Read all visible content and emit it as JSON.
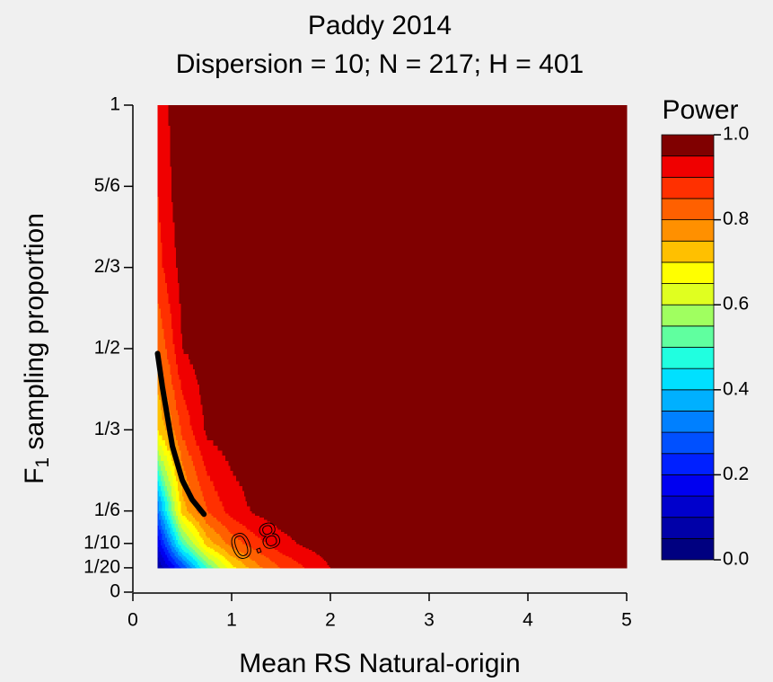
{
  "chart_data": {
    "type": "filled_contour",
    "title": "Paddy 2014",
    "subtitle": "Dispersion = 10; N = 217; H = 401",
    "x_label": "Mean RS Natural-origin",
    "y_label_parts": [
      "F",
      "1",
      " sampling proportion"
    ],
    "colorbar_title": "Power",
    "xlim": [
      0,
      5
    ],
    "ylim": [
      0,
      1
    ],
    "xticks": [
      0,
      1,
      2,
      3,
      4,
      5
    ],
    "yticks": [
      0,
      {
        "value": 0.05,
        "label": "1/20"
      },
      {
        "value": 0.1,
        "label": "1/10"
      },
      {
        "value": 0.1667,
        "label": "1/6"
      },
      {
        "value": 0.3333,
        "label": "1/3"
      },
      {
        "value": 0.5,
        "label": "1/2"
      },
      {
        "value": 0.6667,
        "label": "2/3"
      },
      {
        "value": 0.8333,
        "label": "5/6"
      },
      1
    ],
    "x": [
      0.25,
      0.5,
      0.75,
      1,
      1.25,
      1.5,
      1.75,
      2,
      2.5,
      3,
      3.5,
      4,
      4.5,
      5
    ],
    "y": [
      0.05,
      0.1,
      0.1667,
      0.3333,
      0.5,
      0.6667,
      0.8333,
      1
    ],
    "z": [
      [
        0.05,
        0.25,
        0.5,
        0.68,
        0.78,
        0.85,
        0.9,
        0.95,
        0.98,
        0.99,
        0.99,
        0.99,
        0.99,
        0.99
      ],
      [
        0.15,
        0.5,
        0.72,
        0.82,
        0.88,
        0.93,
        0.96,
        0.98,
        0.99,
        0.99,
        0.99,
        0.99,
        0.99,
        0.99
      ],
      [
        0.3,
        0.72,
        0.85,
        0.92,
        0.96,
        0.98,
        0.99,
        0.99,
        0.99,
        0.99,
        0.99,
        0.99,
        0.99,
        0.99
      ],
      [
        0.7,
        0.86,
        0.96,
        0.98,
        0.99,
        0.99,
        0.99,
        0.99,
        0.99,
        0.99,
        0.99,
        0.99,
        0.99,
        0.99
      ],
      [
        0.8,
        0.95,
        0.98,
        0.99,
        0.99,
        0.99,
        0.99,
        0.99,
        0.99,
        0.99,
        0.99,
        0.99,
        0.99,
        0.99
      ],
      [
        0.88,
        0.97,
        0.99,
        0.99,
        0.99,
        0.99,
        0.99,
        0.99,
        0.99,
        0.99,
        0.99,
        0.99,
        0.99,
        0.99
      ],
      [
        0.9,
        0.99,
        0.99,
        0.99,
        0.99,
        0.99,
        0.99,
        0.99,
        0.99,
        0.99,
        0.99,
        0.99,
        0.99,
        0.99
      ],
      [
        0.92,
        0.99,
        0.99,
        0.99,
        0.99,
        0.99,
        0.99,
        0.99,
        0.99,
        0.99,
        0.99,
        0.99,
        0.99,
        0.99
      ]
    ],
    "levels": [
      0,
      0.05,
      0.1,
      0.15,
      0.2,
      0.25,
      0.3,
      0.35,
      0.4,
      0.45,
      0.5,
      0.55,
      0.6,
      0.65,
      0.7,
      0.75,
      0.8,
      0.85,
      0.9,
      0.95,
      1
    ],
    "colors": [
      "#000080",
      "#0000A8",
      "#0000CC",
      "#0000F0",
      "#0020FF",
      "#0050FF",
      "#0080FF",
      "#00B0FF",
      "#00E0FF",
      "#20FFE0",
      "#60FF9F",
      "#A0FF60",
      "#E0FF20",
      "#FFFF00",
      "#FFC000",
      "#FF9000",
      "#FF6000",
      "#FF3000",
      "#F00000",
      "#800000"
    ],
    "cbar_ticks": [
      {
        "value": 0,
        "label": "0.0"
      },
      0.2,
      0.4,
      0.6,
      0.8,
      {
        "value": 1,
        "label": "1.0"
      }
    ],
    "line": {
      "x": [
        0.25,
        0.3,
        0.35,
        0.4,
        0.5,
        0.6,
        0.72
      ],
      "y": [
        0.49,
        0.42,
        0.36,
        0.3,
        0.23,
        0.19,
        0.16
      ]
    },
    "annotations": [
      {
        "text": "0.8",
        "x": 1.25,
        "y": 0.1
      }
    ]
  }
}
